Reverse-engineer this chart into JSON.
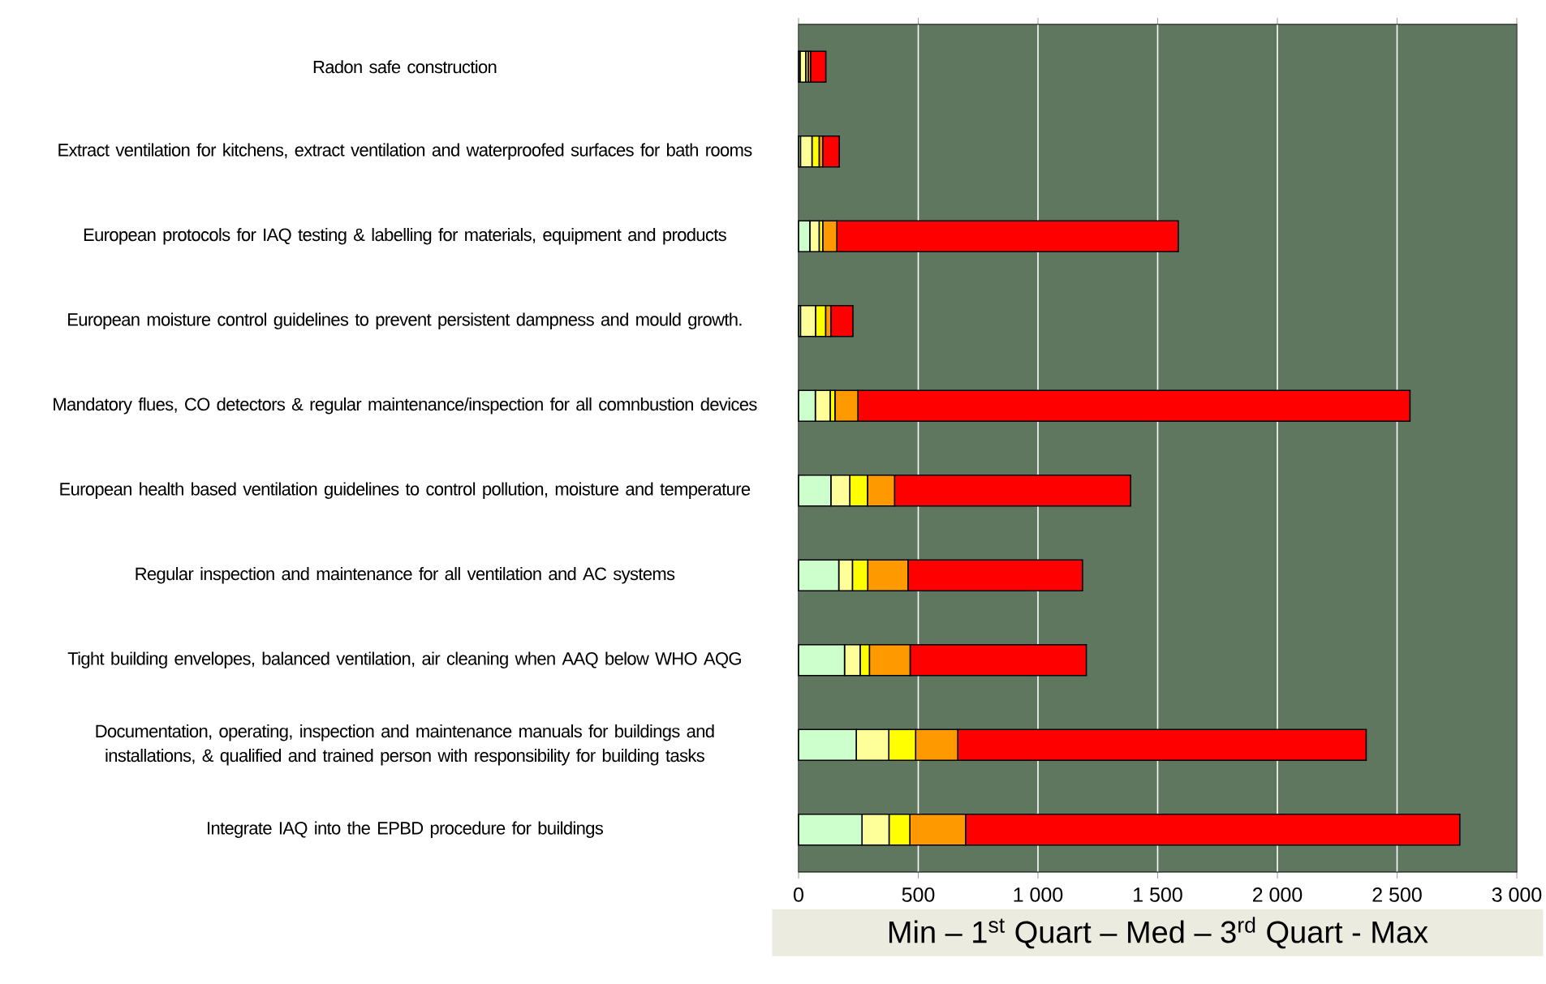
{
  "chart_data": {
    "type": "bar",
    "orientation": "horizontal",
    "stacked": true,
    "categories": [
      "Radon safe construction",
      "Extract ventilation for kitchens, extract ventilation and waterproofed surfaces for bath rooms",
      "European protocols for IAQ testing & labelling for materials, equipment and products",
      "European moisture control guidelines to prevent persistent dampness and mould growth.",
      "Mandatory flues, CO detectors & regular maintenance/inspection for all comnbustion devices",
      "European health based ventilation guidelines to control pollution, moisture and temperature",
      "Regular inspection and maintenance for all ventilation and AC systems",
      "Tight building envelopes, balanced ventilation, air cleaning when AAQ below WHO AQG",
      "Documentation, operating, inspection and maintenance manuals for buildings and installations, & qualified and trained person with responsibility for building tasks",
      "Integrate IAQ into the EPBD procedure for buildings"
    ],
    "series": [
      {
        "color": "#ccffcc",
        "values": [
          6,
          8,
          47,
          8,
          70,
          135,
          168,
          192,
          241,
          265
        ]
      },
      {
        "color": "#ffff99",
        "values": [
          24,
          48,
          39,
          63,
          62,
          79,
          57,
          65,
          136,
          113
        ]
      },
      {
        "color": "#ffff00",
        "values": [
          10,
          30,
          15,
          42,
          20,
          74,
          64,
          39,
          112,
          87
        ]
      },
      {
        "color": "#ff9900",
        "values": [
          10,
          15,
          59,
          22,
          96,
          113,
          168,
          170,
          176,
          233
        ]
      },
      {
        "color": "#ff0000",
        "values": [
          64,
          69,
          1426,
          92,
          2306,
          986,
          729,
          736,
          1706,
          2064
        ]
      }
    ],
    "xlim": [
      0,
      3000
    ],
    "xticks": [
      0,
      500,
      {
        "value": 1000,
        "label": "1 000"
      },
      {
        "value": 1500,
        "label": "1 500"
      },
      {
        "value": 2000,
        "label": "2 000"
      },
      {
        "value": 2500,
        "label": "2 500"
      },
      {
        "value": 3000,
        "label": "3 000"
      }
    ],
    "xlabel": "Min – 1$^{st}$ Quart – Med – 3$^{rd}$ Quart - Max",
    "grid": "x"
  }
}
